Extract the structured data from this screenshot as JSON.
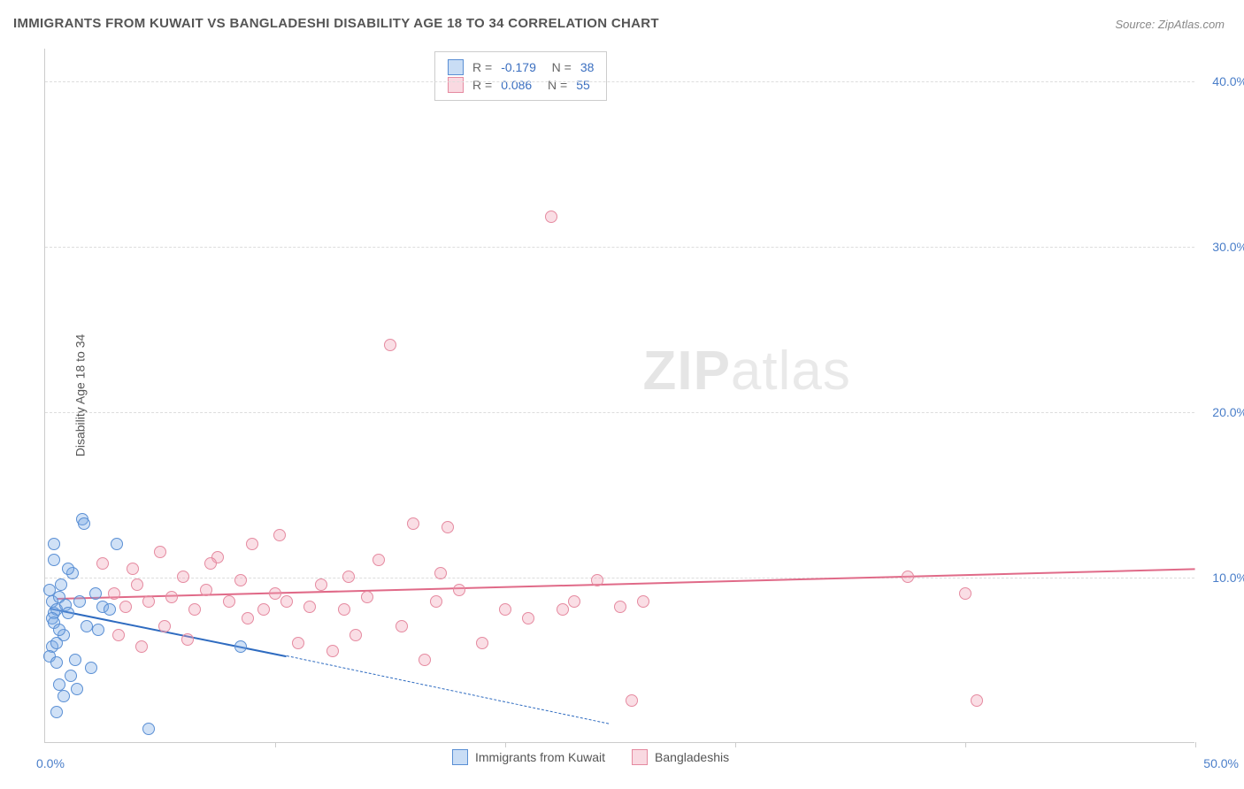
{
  "title": "IMMIGRANTS FROM KUWAIT VS BANGLADESHI DISABILITY AGE 18 TO 34 CORRELATION CHART",
  "source": "Source: ZipAtlas.com",
  "ylabel": "Disability Age 18 to 34",
  "watermark_bold": "ZIP",
  "watermark_thin": "atlas",
  "chart": {
    "type": "scatter",
    "xlim": [
      0,
      50
    ],
    "ylim": [
      0,
      42
    ],
    "ytick_labels": [
      "10.0%",
      "20.0%",
      "30.0%",
      "40.0%"
    ],
    "ytick_values": [
      10,
      20,
      30,
      40
    ],
    "xtick_labels": [
      "0.0%",
      "50.0%"
    ],
    "xtick_values": [
      0,
      50
    ],
    "xtick_marks": [
      10,
      20,
      30,
      40,
      50
    ],
    "grid_color": "#dddddd",
    "background_color": "#ffffff",
    "series": [
      {
        "name": "Immigrants from Kuwait",
        "color_fill": "rgba(120,170,230,0.35)",
        "color_stroke": "#5a8fd4",
        "reg_color": "#2e6bc0",
        "reg_start": [
          0.2,
          8.2
        ],
        "reg_solid_end": [
          10.5,
          5.3
        ],
        "reg_dash_end": [
          24.5,
          1.2
        ],
        "r": "-0.179",
        "n": "38",
        "points": [
          [
            0.3,
            8.5
          ],
          [
            0.4,
            7.8
          ],
          [
            0.2,
            9.2
          ],
          [
            0.5,
            8.0
          ],
          [
            0.3,
            7.5
          ],
          [
            0.6,
            8.8
          ],
          [
            0.4,
            7.2
          ],
          [
            0.8,
            6.5
          ],
          [
            0.3,
            5.8
          ],
          [
            0.5,
            6.0
          ],
          [
            0.2,
            5.2
          ],
          [
            0.7,
            9.5
          ],
          [
            0.9,
            8.3
          ],
          [
            1.2,
            10.2
          ],
          [
            0.4,
            11.0
          ],
          [
            1.0,
            7.8
          ],
          [
            1.5,
            8.5
          ],
          [
            1.8,
            7.0
          ],
          [
            2.2,
            9.0
          ],
          [
            2.5,
            8.2
          ],
          [
            0.6,
            3.5
          ],
          [
            1.1,
            4.0
          ],
          [
            0.8,
            2.8
          ],
          [
            1.4,
            3.2
          ],
          [
            1.3,
            5.0
          ],
          [
            2.0,
            4.5
          ],
          [
            0.5,
            1.8
          ],
          [
            1.6,
            13.5
          ],
          [
            1.7,
            13.2
          ],
          [
            0.4,
            12.0
          ],
          [
            2.3,
            6.8
          ],
          [
            2.8,
            8.0
          ],
          [
            3.1,
            12.0
          ],
          [
            8.5,
            5.8
          ],
          [
            4.5,
            0.8
          ],
          [
            0.5,
            4.8
          ],
          [
            1.0,
            10.5
          ],
          [
            0.6,
            6.8
          ]
        ]
      },
      {
        "name": "Bangladeshis",
        "color_fill": "rgba(240,160,180,0.35)",
        "color_stroke": "#e58aa0",
        "reg_color": "#e06a88",
        "reg_start": [
          0.5,
          8.8
        ],
        "reg_solid_end": [
          50.0,
          10.6
        ],
        "reg_dash_end": null,
        "r": "0.086",
        "n": "55",
        "points": [
          [
            3.0,
            9.0
          ],
          [
            3.5,
            8.2
          ],
          [
            4.0,
            9.5
          ],
          [
            4.5,
            8.5
          ],
          [
            5.0,
            11.5
          ],
          [
            5.5,
            8.8
          ],
          [
            6.0,
            10.0
          ],
          [
            6.5,
            8.0
          ],
          [
            7.0,
            9.2
          ],
          [
            3.2,
            6.5
          ],
          [
            4.2,
            5.8
          ],
          [
            5.2,
            7.0
          ],
          [
            6.2,
            6.2
          ],
          [
            7.5,
            11.2
          ],
          [
            8.0,
            8.5
          ],
          [
            8.5,
            9.8
          ],
          [
            9.0,
            12.0
          ],
          [
            9.5,
            8.0
          ],
          [
            10.0,
            9.0
          ],
          [
            10.5,
            8.5
          ],
          [
            11.0,
            6.0
          ],
          [
            11.5,
            8.2
          ],
          [
            12.0,
            9.5
          ],
          [
            12.5,
            5.5
          ],
          [
            13.0,
            8.0
          ],
          [
            13.5,
            6.5
          ],
          [
            14.0,
            8.8
          ],
          [
            15.0,
            24.0
          ],
          [
            15.5,
            7.0
          ],
          [
            16.0,
            13.2
          ],
          [
            16.5,
            5.0
          ],
          [
            17.0,
            8.5
          ],
          [
            17.5,
            13.0
          ],
          [
            18.0,
            9.2
          ],
          [
            19.0,
            6.0
          ],
          [
            20.0,
            8.0
          ],
          [
            21.0,
            7.5
          ],
          [
            22.0,
            31.8
          ],
          [
            22.5,
            8.0
          ],
          [
            23.0,
            8.5
          ],
          [
            24.0,
            9.8
          ],
          [
            25.0,
            8.2
          ],
          [
            25.5,
            2.5
          ],
          [
            26.0,
            8.5
          ],
          [
            37.5,
            10.0
          ],
          [
            40.0,
            9.0
          ],
          [
            40.5,
            2.5
          ],
          [
            2.5,
            10.8
          ],
          [
            3.8,
            10.5
          ],
          [
            7.2,
            10.8
          ],
          [
            14.5,
            11.0
          ],
          [
            17.2,
            10.2
          ],
          [
            8.8,
            7.5
          ],
          [
            13.2,
            10.0
          ],
          [
            10.2,
            12.5
          ]
        ]
      }
    ]
  },
  "legend_bottom": [
    {
      "swatch": "blue",
      "label": "Immigrants from Kuwait"
    },
    {
      "swatch": "pink",
      "label": "Bangladeshis"
    }
  ]
}
